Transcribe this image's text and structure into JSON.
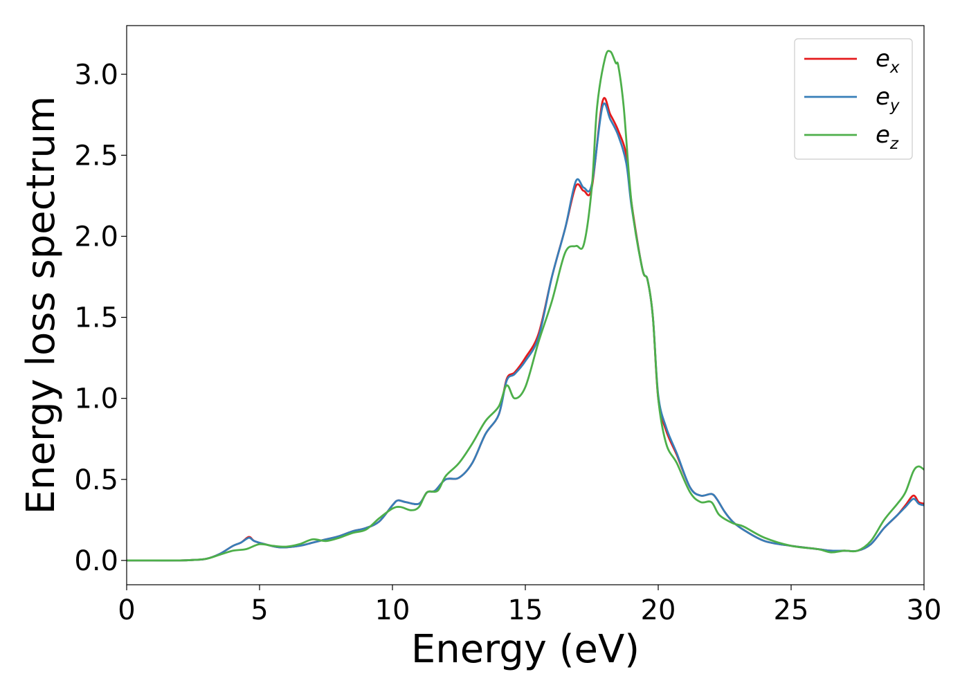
{
  "chart_data": {
    "type": "line",
    "title": "",
    "xlabel": "Energy (eV)",
    "ylabel": "Energy loss spectrum",
    "xlim": [
      0,
      30
    ],
    "ylim": [
      -0.15,
      3.3
    ],
    "xticks": [
      0,
      5,
      10,
      15,
      20,
      25,
      30
    ],
    "xtick_labels": [
      "0",
      "5",
      "10",
      "15",
      "20",
      "25",
      "30"
    ],
    "yticks": [
      0.0,
      0.5,
      1.0,
      1.5,
      2.0,
      2.5,
      3.0
    ],
    "ytick_labels": [
      "0.0",
      "0.5",
      "1.0",
      "1.5",
      "2.0",
      "2.5",
      "3.0"
    ],
    "grid": false,
    "legend_position": "top-right",
    "series": [
      {
        "name": "ex",
        "base": "e",
        "sub": "x",
        "color": "#e41a1c",
        "x": [
          0,
          1,
          2,
          2.5,
          3,
          3.5,
          4,
          4.3,
          4.6,
          4.8,
          5.2,
          5.8,
          6.5,
          7,
          7.5,
          8,
          8.5,
          9,
          9.5,
          10,
          10.2,
          10.5,
          11,
          11.3,
          11.6,
          12,
          12.5,
          13,
          13.5,
          14,
          14.3,
          14.6,
          15,
          15.5,
          16,
          16.5,
          16.9,
          17.2,
          17.5,
          17.9,
          18.2,
          18.5,
          18.8,
          19,
          19.4,
          19.6,
          19.8,
          20,
          20.3,
          20.7,
          21.2,
          21.6,
          22,
          22.2,
          22.5,
          22.8,
          23.2,
          24,
          25,
          26,
          26.5,
          27,
          27.5,
          28,
          28.5,
          29,
          29.3,
          29.6,
          29.8,
          30
        ],
        "values": [
          0,
          0,
          0,
          0.003,
          0.01,
          0.04,
          0.09,
          0.11,
          0.145,
          0.12,
          0.1,
          0.08,
          0.09,
          0.11,
          0.13,
          0.15,
          0.18,
          0.2,
          0.24,
          0.34,
          0.37,
          0.36,
          0.35,
          0.42,
          0.43,
          0.5,
          0.51,
          0.6,
          0.78,
          0.9,
          1.12,
          1.16,
          1.25,
          1.4,
          1.75,
          2.05,
          2.31,
          2.28,
          2.3,
          2.83,
          2.75,
          2.65,
          2.5,
          2.2,
          1.8,
          1.73,
          1.5,
          1.0,
          0.8,
          0.65,
          0.45,
          0.4,
          0.41,
          0.38,
          0.3,
          0.24,
          0.19,
          0.12,
          0.09,
          0.07,
          0.06,
          0.06,
          0.06,
          0.1,
          0.2,
          0.28,
          0.34,
          0.4,
          0.36,
          0.35
        ]
      },
      {
        "name": "ey",
        "base": "e",
        "sub": "y",
        "color": "#377eb8",
        "x": [
          0,
          1,
          2,
          2.5,
          3,
          3.5,
          4,
          4.3,
          4.6,
          4.8,
          5.2,
          5.8,
          6.5,
          7,
          7.5,
          8,
          8.5,
          9,
          9.5,
          10,
          10.2,
          10.5,
          11,
          11.3,
          11.6,
          12,
          12.5,
          13,
          13.5,
          14,
          14.3,
          14.6,
          15,
          15.5,
          16,
          16.5,
          16.9,
          17.2,
          17.5,
          17.9,
          18.2,
          18.5,
          18.8,
          19,
          19.4,
          19.6,
          19.8,
          20,
          20.3,
          20.7,
          21.2,
          21.6,
          22,
          22.2,
          22.5,
          22.8,
          23.2,
          24,
          25,
          26,
          26.5,
          27,
          27.5,
          28,
          28.5,
          29,
          29.3,
          29.6,
          29.8,
          30
        ],
        "values": [
          0,
          0,
          0,
          0.003,
          0.01,
          0.04,
          0.09,
          0.11,
          0.14,
          0.12,
          0.1,
          0.08,
          0.09,
          0.11,
          0.13,
          0.15,
          0.18,
          0.2,
          0.24,
          0.34,
          0.37,
          0.36,
          0.35,
          0.42,
          0.43,
          0.5,
          0.51,
          0.6,
          0.78,
          0.9,
          1.11,
          1.15,
          1.23,
          1.38,
          1.75,
          2.05,
          2.34,
          2.3,
          2.32,
          2.8,
          2.72,
          2.62,
          2.45,
          2.18,
          1.8,
          1.73,
          1.5,
          1.02,
          0.82,
          0.66,
          0.45,
          0.4,
          0.41,
          0.38,
          0.3,
          0.24,
          0.19,
          0.12,
          0.09,
          0.07,
          0.06,
          0.06,
          0.06,
          0.1,
          0.2,
          0.28,
          0.33,
          0.38,
          0.35,
          0.34
        ]
      },
      {
        "name": "ez",
        "base": "e",
        "sub": "z",
        "color": "#4daf4a",
        "x": [
          0,
          1,
          2,
          2.5,
          3,
          3.5,
          4,
          4.5,
          5,
          5.5,
          6,
          6.5,
          7,
          7.5,
          8,
          8.5,
          9,
          9.5,
          10,
          10.3,
          10.7,
          11,
          11.3,
          11.7,
          12,
          12.5,
          13,
          13.5,
          14,
          14.3,
          14.6,
          15,
          15.5,
          16,
          16.5,
          16.9,
          17.2,
          17.5,
          17.7,
          18,
          18.2,
          18.4,
          18.5,
          18.7,
          19,
          19.4,
          19.6,
          19.8,
          20,
          20.3,
          20.7,
          21.2,
          21.6,
          22,
          22.3,
          22.8,
          23.2,
          24,
          25,
          26,
          26.5,
          27,
          27.5,
          28,
          28.5,
          29,
          29.3,
          29.6,
          29.8,
          30
        ],
        "values": [
          0,
          0,
          0,
          0.003,
          0.01,
          0.035,
          0.06,
          0.07,
          0.1,
          0.09,
          0.085,
          0.1,
          0.13,
          0.12,
          0.14,
          0.17,
          0.19,
          0.26,
          0.32,
          0.33,
          0.31,
          0.33,
          0.42,
          0.43,
          0.52,
          0.6,
          0.72,
          0.86,
          0.95,
          1.08,
          1.0,
          1.07,
          1.35,
          1.6,
          1.9,
          1.94,
          1.95,
          2.3,
          2.8,
          3.1,
          3.14,
          3.07,
          3.05,
          2.8,
          2.2,
          1.8,
          1.73,
          1.5,
          1.0,
          0.72,
          0.6,
          0.42,
          0.36,
          0.36,
          0.28,
          0.23,
          0.21,
          0.14,
          0.09,
          0.07,
          0.05,
          0.06,
          0.06,
          0.12,
          0.25,
          0.35,
          0.42,
          0.55,
          0.58,
          0.56
        ]
      }
    ]
  }
}
